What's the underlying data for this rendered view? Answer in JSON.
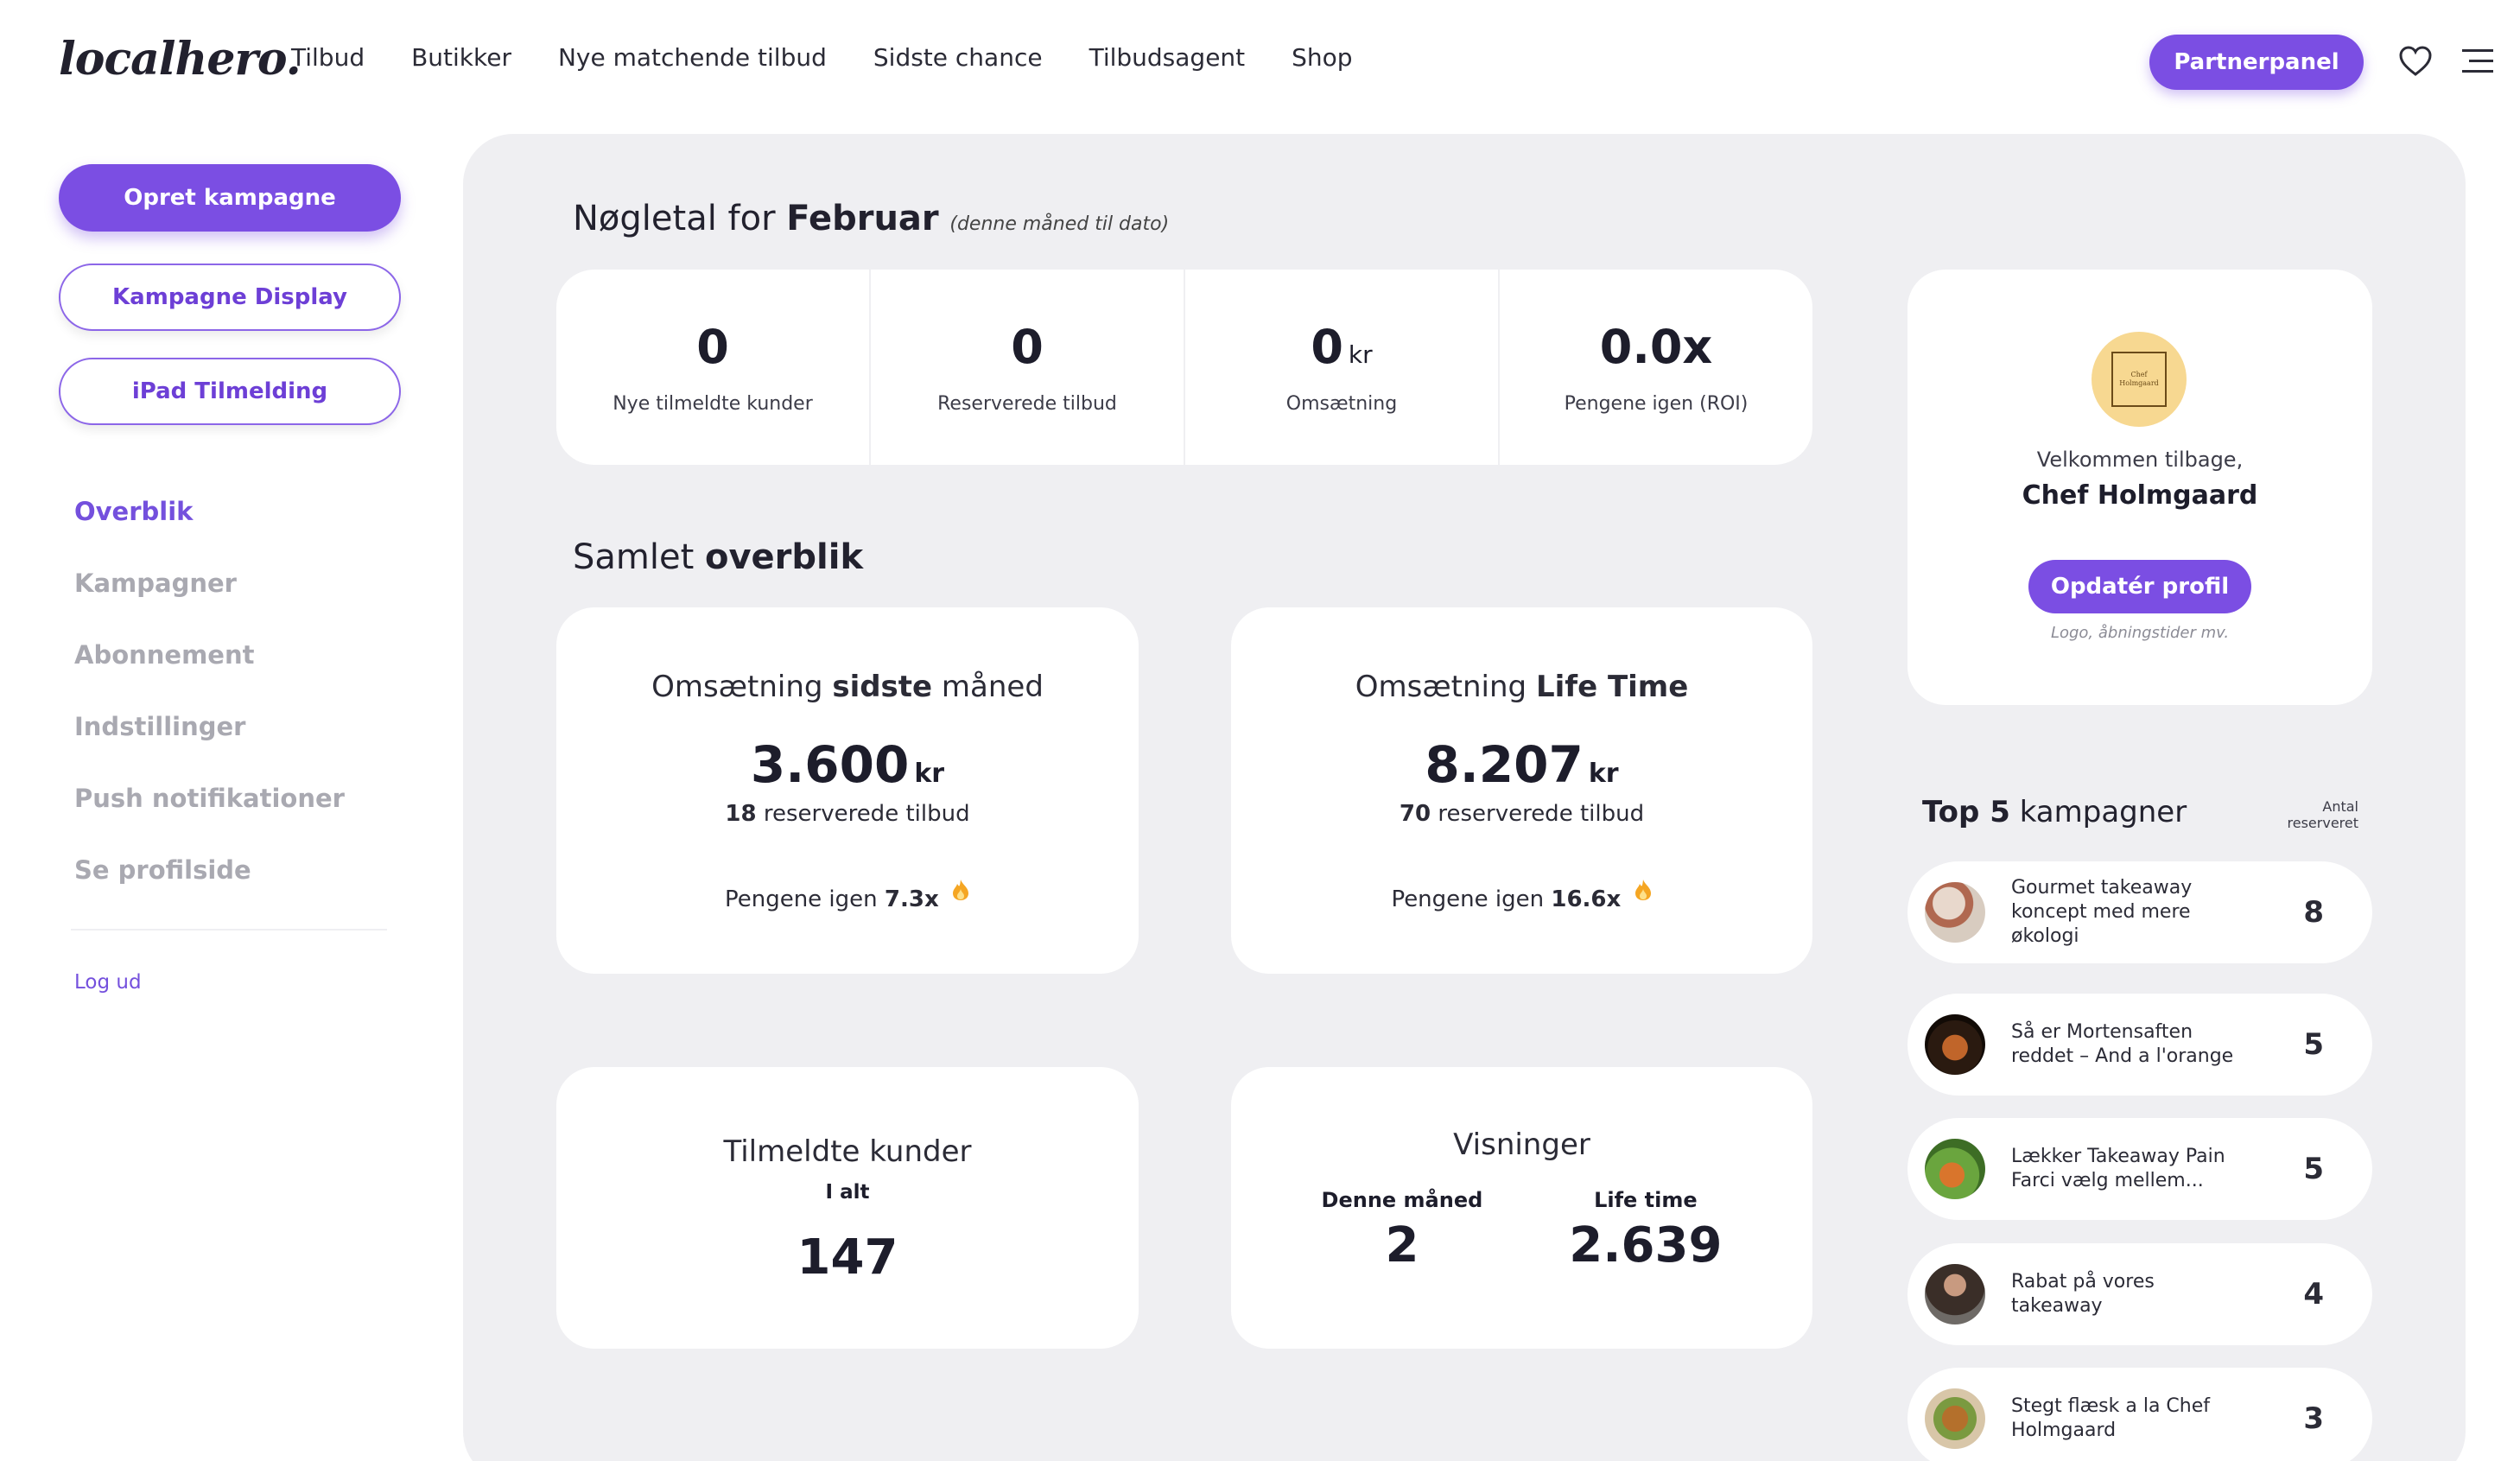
{
  "header": {
    "logo": "localhero.",
    "nav": [
      "Tilbud",
      "Butikker",
      "Nye matchende tilbud",
      "Sidste chance",
      "Tilbudsagent",
      "Shop"
    ],
    "partner_button": "Partnerpanel"
  },
  "sidebar": {
    "create_button": "Opret kampagne",
    "display_button": "Kampagne Display",
    "ipad_button": "iPad Tilmelding",
    "menu": [
      "Overblik",
      "Kampagner",
      "Abonnement",
      "Indstillinger",
      "Push notifikationer",
      "Se profilside"
    ],
    "logout": "Log ud"
  },
  "kpi": {
    "title_prefix": "Nøgletal for",
    "title_month": "Februar",
    "title_note": "(denne måned til dato)",
    "items": [
      {
        "value": "0",
        "unit": "",
        "label": "Nye tilmeldte kunder"
      },
      {
        "value": "0",
        "unit": "",
        "label": "Reserverede tilbud"
      },
      {
        "value": "0",
        "unit": "kr",
        "label": "Omsætning"
      },
      {
        "value": "0.0x",
        "unit": "",
        "label": "Pengene igen (ROI)"
      }
    ]
  },
  "overview": {
    "title_prefix": "Samlet",
    "title_bold": "overblik",
    "last_month": {
      "title_a": "Omsætning",
      "title_b": "sidste",
      "title_c": "måned",
      "value": "3.600",
      "unit": "kr",
      "reserved_count": "18",
      "reserved_label": "reserverede tilbud",
      "roi_label": "Pengene igen",
      "roi_value": "7.3x"
    },
    "lifetime": {
      "title_a": "Omsætning",
      "title_b": "Life Time",
      "value": "8.207",
      "unit": "kr",
      "reserved_count": "70",
      "reserved_label": "reserverede tilbud",
      "roi_label": "Pengene igen",
      "roi_value": "16.6x"
    },
    "customers": {
      "title": "Tilmeldte kunder",
      "subtitle": "I alt",
      "value": "147"
    },
    "views": {
      "title": "Visninger",
      "month_label": "Denne måned",
      "month_value": "2",
      "lifetime_label": "Life time",
      "lifetime_value": "2.639"
    }
  },
  "profile": {
    "welcome": "Velkommen tilbage,",
    "name": "Chef Holmgaard",
    "update_button": "Opdatér profil",
    "note": "Logo, åbningstider mv.",
    "avatar_text_1": "Chef",
    "avatar_text_2": "Holmgaard"
  },
  "top5": {
    "title_bold": "Top 5",
    "title_rest": "kampagner",
    "col_label_1": "Antal",
    "col_label_2": "reserveret",
    "items": [
      {
        "name": "Gourmet takeaway koncept med mere økologi",
        "count": "8",
        "img": "#c9a38a"
      },
      {
        "name": "Så er Mortensaften reddet – And a l'orange",
        "count": "5",
        "img": "#3b2616"
      },
      {
        "name": "Lækker Takeaway Pain Farci vælg mellem...",
        "count": "5",
        "img": "#5a8a3a"
      },
      {
        "name": "Rabat på vores takeaway",
        "count": "4",
        "img": "#4a3a30"
      },
      {
        "name": "Stegt flæsk a la Chef Holmgaard",
        "count": "3",
        "img": "#8a6030"
      }
    ]
  },
  "colors": {
    "accent": "#7b4ee3",
    "panel": "#efeff2",
    "fire": "#f5a623"
  }
}
